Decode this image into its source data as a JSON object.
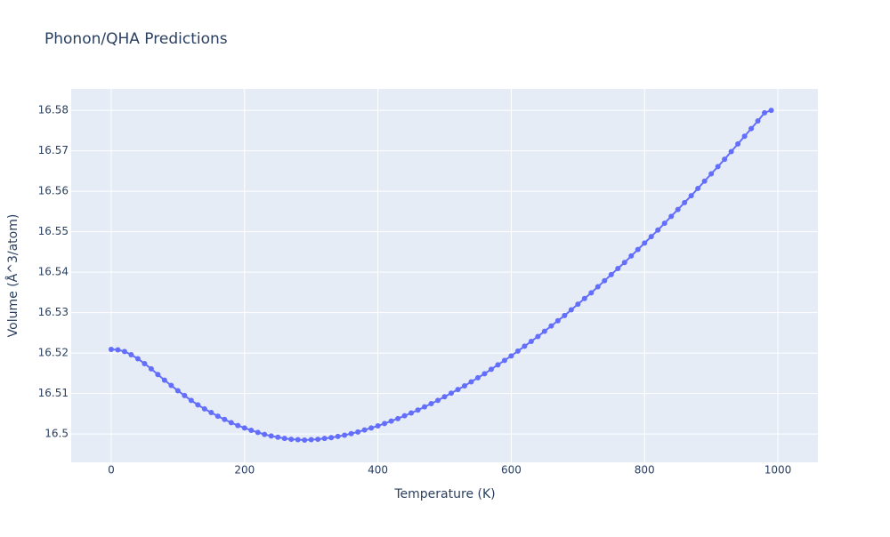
{
  "chart_data": {
    "type": "line",
    "title": "Phonon/QHA Predictions",
    "x_label": "Temperature (K)",
    "y_label": "Volume (Å^3/atom)",
    "x": [
      0,
      10,
      20,
      30,
      40,
      50,
      60,
      70,
      80,
      90,
      100,
      110,
      120,
      130,
      140,
      150,
      160,
      170,
      180,
      190,
      200,
      210,
      220,
      230,
      240,
      250,
      260,
      270,
      280,
      290,
      300,
      310,
      320,
      330,
      340,
      350,
      360,
      370,
      380,
      390,
      400,
      410,
      420,
      430,
      440,
      450,
      460,
      470,
      480,
      490,
      500,
      510,
      520,
      530,
      540,
      550,
      560,
      570,
      580,
      590,
      600,
      610,
      620,
      630,
      640,
      650,
      660,
      670,
      680,
      690,
      700,
      710,
      720,
      730,
      740,
      750,
      760,
      770,
      780,
      790,
      800,
      810,
      820,
      830,
      840,
      850,
      860,
      870,
      880,
      890,
      900,
      910,
      920,
      930,
      940,
      950,
      960,
      970,
      980,
      990
    ],
    "series": [
      {
        "name": "Volume",
        "color": "#636efa",
        "values": [
          16.5209,
          16.5208,
          16.5204,
          16.5196,
          16.5186,
          16.5174,
          16.5161,
          16.5147,
          16.5133,
          16.512,
          16.5107,
          16.5095,
          16.5083,
          16.5072,
          16.5062,
          16.5053,
          16.5044,
          16.5036,
          16.5028,
          16.5021,
          16.5015,
          16.5009,
          16.5004,
          16.4999,
          16.4995,
          16.4992,
          16.4989,
          16.4987,
          16.4986,
          16.4985,
          16.4986,
          16.4987,
          16.4989,
          16.4991,
          16.4994,
          16.4997,
          16.5001,
          16.5005,
          16.501,
          16.5015,
          16.502,
          16.5026,
          16.5032,
          16.5038,
          16.5045,
          16.5052,
          16.5059,
          16.5067,
          16.5075,
          16.5083,
          16.5092,
          16.5101,
          16.511,
          16.5119,
          16.5129,
          16.5139,
          16.5149,
          16.516,
          16.5171,
          16.5182,
          16.5193,
          16.5205,
          16.5217,
          16.5229,
          16.5241,
          16.5254,
          16.5267,
          16.528,
          16.5293,
          16.5307,
          16.5321,
          16.5335,
          16.5349,
          16.5364,
          16.5379,
          16.5394,
          16.5409,
          16.5424,
          16.544,
          16.5456,
          16.5472,
          16.5488,
          16.5504,
          16.5521,
          16.5538,
          16.5555,
          16.5572,
          16.5589,
          16.5607,
          16.5625,
          16.5643,
          16.5661,
          16.5679,
          16.5698,
          16.5717,
          16.5736,
          16.5755,
          16.5774,
          16.5794,
          16.58
        ]
      }
    ],
    "xlim": [
      -60,
      1060
    ],
    "xticks": [
      0,
      200,
      400,
      600,
      800,
      1000
    ],
    "ylim": [
      16.493,
      16.5853
    ],
    "yticks": [
      16.5,
      16.51,
      16.52,
      16.53,
      16.54,
      16.55,
      16.56,
      16.57,
      16.58
    ],
    "grid": true,
    "plot_background": "#e5ecf6",
    "grid_color": "#ffffff"
  }
}
